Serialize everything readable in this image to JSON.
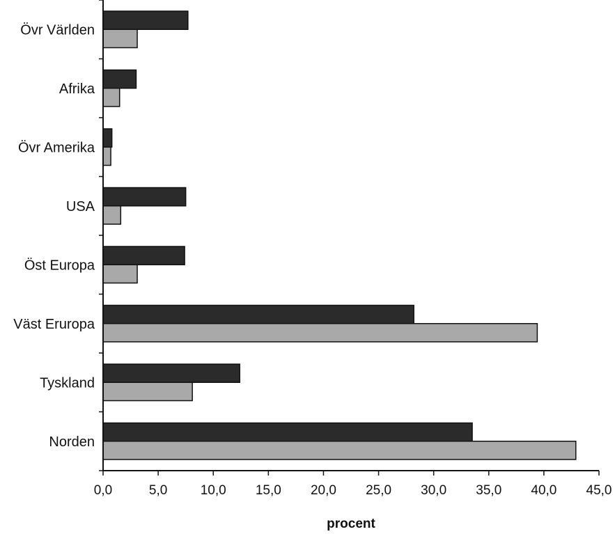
{
  "chart_data": {
    "type": "bar",
    "orientation": "horizontal",
    "title": "",
    "xlabel": "procent",
    "ylabel": "",
    "categories": [
      "Övr Världen",
      "Afrika",
      "Övr Amerika",
      "USA",
      "Öst Europa",
      "Väst Eruropa",
      "Tyskland",
      "Norden"
    ],
    "series": [
      {
        "color": "#2b2b2b",
        "values": [
          7.7,
          3.0,
          0.8,
          7.5,
          7.4,
          28.2,
          12.4,
          33.5
        ]
      },
      {
        "color": "#a9a9a9",
        "values": [
          3.1,
          1.5,
          0.7,
          1.6,
          3.1,
          39.4,
          8.1,
          42.9
        ]
      }
    ],
    "xlim": [
      0,
      45
    ],
    "xticks": [
      "0,0",
      "5,0",
      "10,0",
      "15,0",
      "20,0",
      "25,0",
      "30,0",
      "35,0",
      "40,0",
      "45,0"
    ],
    "grid": false,
    "legend": "none"
  }
}
